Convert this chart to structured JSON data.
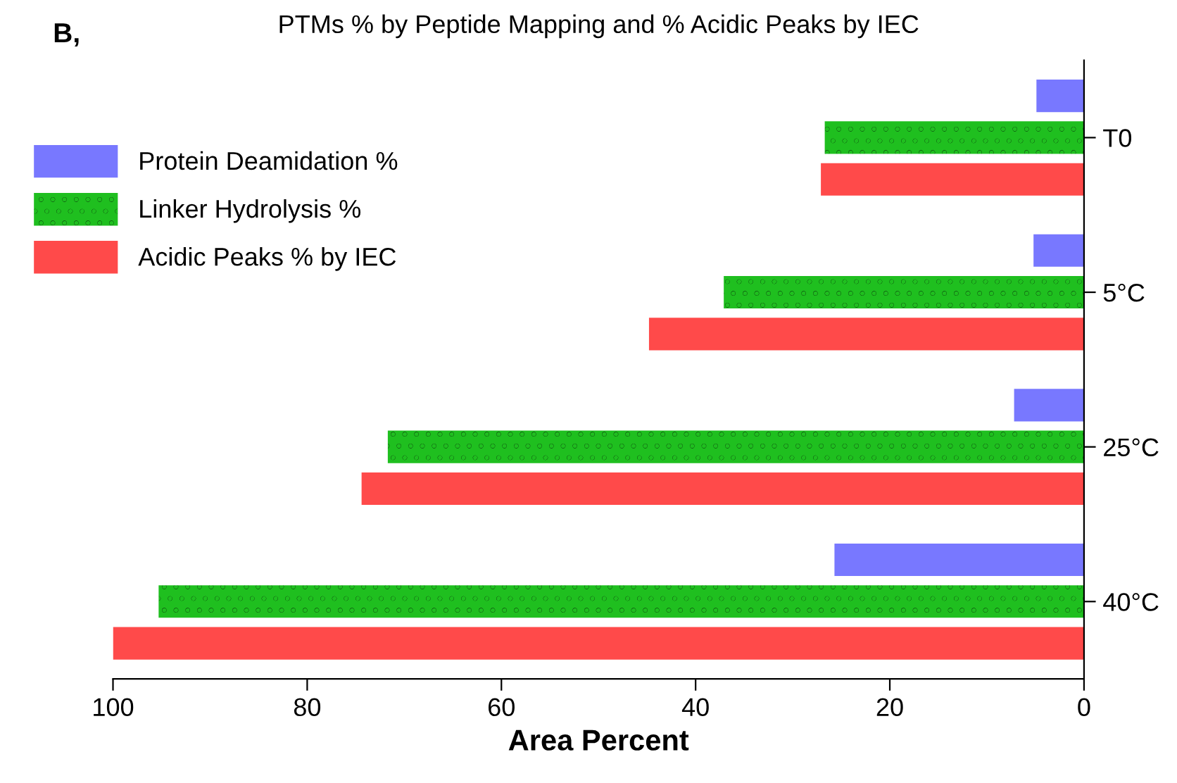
{
  "chart_data": {
    "type": "bar",
    "orientation": "horizontal",
    "title": "PTMs % by Peptide Mapping and % Acidic Peaks by IEC",
    "xlabel": "Area Percent",
    "annotations": [
      "B,"
    ],
    "categories": [
      "T0",
      "5°C",
      "25°C",
      "40°C"
    ],
    "series": [
      {
        "name": "Protein Deamidation %",
        "color": "#7878ff",
        "values": [
          4.9,
          5.2,
          7.2,
          25.7
        ]
      },
      {
        "name": "Linker Hydrolysis %",
        "color": "#1fbf1f",
        "values": [
          26.7,
          37.1,
          71.7,
          95.3
        ]
      },
      {
        "name": "Acidic Peaks % by IEC",
        "color": "#ff4a4a",
        "values": [
          27.1,
          44.8,
          74.4,
          100
        ]
      }
    ],
    "xlim": [
      100,
      0
    ],
    "xticks": [
      100,
      80,
      60,
      40,
      20,
      0
    ],
    "grid": false,
    "legend": "top left"
  }
}
